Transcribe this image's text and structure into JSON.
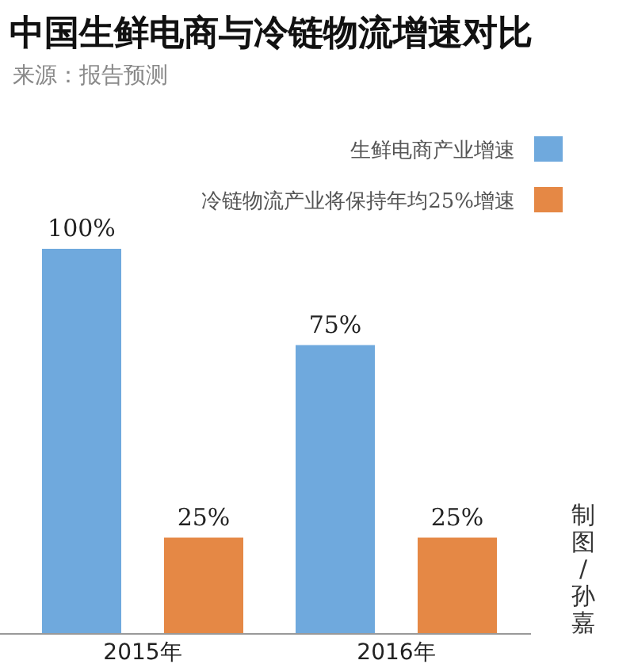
{
  "chart_data": {
    "type": "bar",
    "title": "中国生鲜电商与冷链物流增速对比",
    "subtitle": "来源：报告预测",
    "categories": [
      "2015年",
      "2016年"
    ],
    "series": [
      {
        "name": "生鲜电商产业增速",
        "color": "#6fa9dd",
        "values": [
          100,
          75
        ],
        "value_labels": [
          "100%",
          "75%"
        ]
      },
      {
        "name": "冷链物流产业将保持年均25%增速",
        "color": "#e58845",
        "values": [
          25,
          25
        ],
        "value_labels": [
          "25%",
          "25%"
        ]
      }
    ],
    "legend": "top right",
    "annotations": [
      "制图/孙嘉"
    ]
  }
}
